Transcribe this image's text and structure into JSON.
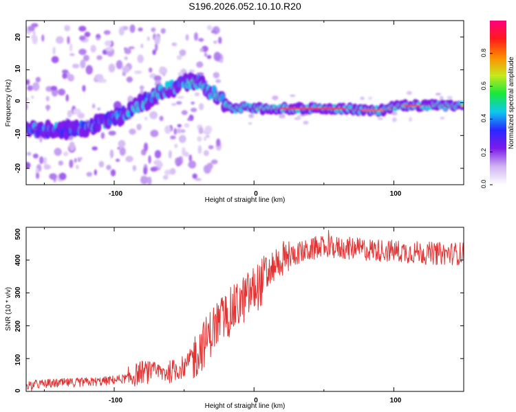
{
  "title": "S196.2026.052.10.10.R20",
  "chart_data": [
    {
      "type": "heatmap",
      "title": "",
      "xlabel": "Height of straight line (km)",
      "ylabel": "Frequency (Hz)",
      "xlim": [
        -163,
        150
      ],
      "ylim": [
        -25,
        25
      ],
      "x_ticks": [
        "-100",
        "0",
        "100"
      ],
      "y_ticks": [
        "20",
        "10",
        "0",
        "-10",
        "-20"
      ],
      "ridge": {
        "x": [
          -163,
          -140,
          -120,
          -105,
          -95,
          -85,
          -75,
          -65,
          -55,
          -48,
          -43,
          -38,
          -32,
          -25,
          -18,
          -12,
          -6,
          0,
          10,
          20,
          40,
          60,
          70,
          80,
          90,
          95,
          100,
          105,
          110,
          120,
          130,
          150
        ],
        "y": [
          -8,
          -8.5,
          -7.5,
          -5.5,
          -4,
          -1,
          1,
          3.5,
          5,
          6.2,
          6.8,
          6,
          4,
          1.5,
          -1.5,
          -2,
          -1.2,
          -1.8,
          -1.8,
          -1.8,
          -1.8,
          -1.8,
          -2,
          -2.3,
          -2.3,
          -2,
          -1.3,
          -1,
          -0.9,
          -0.9,
          -0.9,
          -0.9
        ]
      },
      "colorbar": {
        "label": "Normalized spectral amplitude",
        "range": [
          0,
          1
        ],
        "ticks": [
          "0.0",
          "0.2",
          "0.4",
          "0.6",
          "0.8"
        ],
        "colors": [
          "#ffffff",
          "#d0b4f2",
          "#7c1be9",
          "#2828ff",
          "#0ec8ee",
          "#18e83a",
          "#c8e81c",
          "#ff8a00",
          "#ff1a1a",
          "#ff007f"
        ]
      }
    },
    {
      "type": "line",
      "title": "",
      "xlabel": "Height of straight line (km)",
      "ylabel": "SNR (10 * v/v)",
      "xlim": [
        -163,
        150
      ],
      "ylim": [
        0,
        500
      ],
      "x_ticks": [
        "-100",
        "0",
        "100"
      ],
      "y_ticks": [
        "500",
        "400",
        "300",
        "200",
        "100",
        "0"
      ],
      "series": [
        {
          "name": "SNR",
          "color": "#e33232",
          "trend_x": [
            -163,
            -140,
            -110,
            -90,
            -80,
            -70,
            -60,
            -50,
            -42,
            -35,
            -28,
            -20,
            -12,
            -5,
            0,
            5,
            10,
            15,
            20,
            30,
            50,
            70,
            90,
            110,
            130,
            150
          ],
          "trend_y": [
            20,
            25,
            30,
            40,
            60,
            55,
            60,
            75,
            110,
            150,
            200,
            230,
            260,
            290,
            310,
            330,
            360,
            390,
            400,
            420,
            440,
            435,
            430,
            425,
            420,
            420
          ]
        }
      ]
    }
  ]
}
